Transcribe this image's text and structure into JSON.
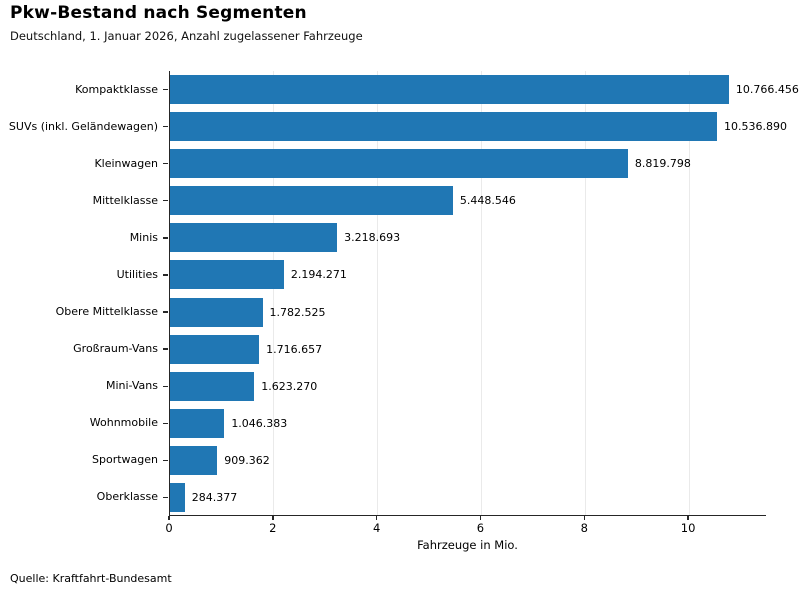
{
  "header": {
    "title": "Pkw-Bestand nach Segmenten",
    "subtitle": "Deutschland, 1. Januar 2026, Anzahl zugelassener Fahrzeuge"
  },
  "footer": {
    "source": "Quelle: Kraftfahrt-Bundesamt"
  },
  "chart_data": {
    "type": "bar",
    "orientation": "horizontal",
    "title": "Pkw-Bestand nach Segmenten",
    "subtitle": "Deutschland, 1. Januar 2026, Anzahl zugelassener Fahrzeuge",
    "categories": [
      "Kompaktklasse",
      "SUVs (inkl. Geländewagen)",
      "Kleinwagen",
      "Mittelklasse",
      "Minis",
      "Utilities",
      "Obere Mittelklasse",
      "Großraum-Vans",
      "Mini-Vans",
      "Wohnmobile",
      "Sportwagen",
      "Oberklasse"
    ],
    "values": [
      10766456,
      10536890,
      8819798,
      5448546,
      3218693,
      2194271,
      1782525,
      1716657,
      1623270,
      1046383,
      909362,
      284377
    ],
    "value_labels": [
      "10.766.456",
      "10.536.890",
      "8.819.798",
      "5.448.546",
      "3.218.693",
      "2.194.271",
      "1.782.525",
      "1.716.657",
      "1.623.270",
      "1.046.383",
      "909.362",
      "284.377"
    ],
    "xlabel": "Fahrzeuge in Mio.",
    "xlim": [
      0,
      11.5
    ],
    "xticks": [
      0,
      2,
      4,
      6,
      8,
      10
    ],
    "grid": "vertical",
    "legend_position": "none",
    "bar_color": "#2077b4"
  }
}
